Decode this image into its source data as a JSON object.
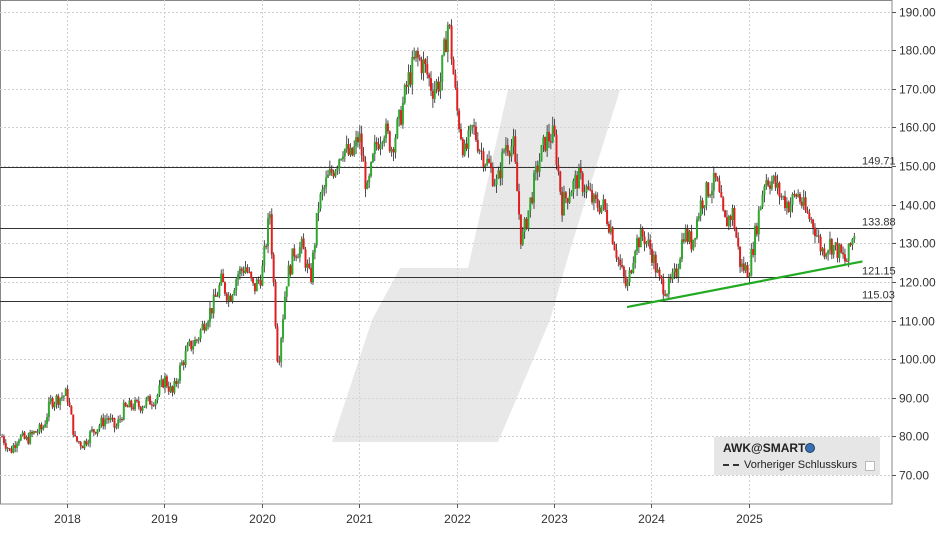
{
  "chart_data": {
    "type": "candlestick",
    "title": "",
    "ylim": [
      62.5,
      193
    ],
    "y_ticks": [
      "190.00",
      "180.00",
      "170.00",
      "160.00",
      "150.00",
      "140.00",
      "130.00",
      "120.00",
      "110.00",
      "100.00",
      "90.00",
      "80.00",
      "70.00"
    ],
    "x_ticks": [
      "2018",
      "2019",
      "2020",
      "2021",
      "2022",
      "2023",
      "2024",
      "2025"
    ],
    "grid": true,
    "up_color": "#2ea82e",
    "down_color": "#e02020",
    "horizontal_levels": [
      {
        "value": 149.71,
        "label": "149.71"
      },
      {
        "value": 133.88,
        "label": "133.88"
      },
      {
        "value": 121.15,
        "label": "121.15"
      },
      {
        "value": 115.03,
        "label": "115.03"
      }
    ],
    "trendline": {
      "start": [
        "2023-10",
        113.5
      ],
      "end": [
        "2026-03",
        125.3
      ],
      "color": "#22aa22"
    },
    "series": [
      {
        "values": [
          [
            "2017-05",
            80
          ],
          [
            "2017-06",
            76
          ],
          [
            "2017-07",
            80
          ],
          [
            "2017-08",
            79
          ],
          [
            "2017-09",
            81
          ],
          [
            "2017-10",
            82
          ],
          [
            "2017-11",
            89
          ],
          [
            "2017-12",
            90
          ],
          [
            "2018-01",
            91
          ],
          [
            "2018-02",
            79
          ],
          [
            "2018-03",
            78
          ],
          [
            "2018-04",
            81
          ],
          [
            "2018-05",
            83
          ],
          [
            "2018-06",
            85
          ],
          [
            "2018-07",
            82
          ],
          [
            "2018-08",
            87
          ],
          [
            "2018-09",
            88
          ],
          [
            "2018-10",
            88
          ],
          [
            "2018-11",
            89
          ],
          [
            "2018-12",
            90
          ],
          [
            "2019-01",
            95
          ],
          [
            "2019-02",
            91
          ],
          [
            "2019-03",
            98
          ],
          [
            "2019-04",
            103
          ],
          [
            "2019-05",
            105
          ],
          [
            "2019-06",
            110
          ],
          [
            "2019-07",
            114
          ],
          [
            "2019-08",
            120
          ],
          [
            "2019-09",
            116
          ],
          [
            "2019-10",
            122
          ],
          [
            "2019-11",
            124
          ],
          [
            "2019-12",
            118
          ],
          [
            "2020-01",
            122
          ],
          [
            "2020-02",
            138
          ],
          [
            "2020-03",
            98
          ],
          [
            "2020-04",
            120
          ],
          [
            "2020-05",
            128
          ],
          [
            "2020-06",
            129
          ],
          [
            "2020-07",
            120
          ],
          [
            "2020-08",
            140
          ],
          [
            "2020-09",
            146
          ],
          [
            "2020-10",
            150
          ],
          [
            "2020-11",
            155
          ],
          [
            "2020-12",
            152
          ],
          [
            "2021-01",
            158
          ],
          [
            "2021-02",
            143
          ],
          [
            "2021-03",
            155
          ],
          [
            "2021-04",
            160
          ],
          [
            "2021-05",
            155
          ],
          [
            "2021-06",
            162
          ],
          [
            "2021-07",
            172
          ],
          [
            "2021-08",
            178
          ],
          [
            "2021-09",
            176
          ],
          [
            "2021-10",
            170
          ],
          [
            "2021-11",
            172
          ],
          [
            "2021-12",
            188
          ],
          [
            "2022-01",
            165
          ],
          [
            "2022-02",
            153
          ],
          [
            "2022-03",
            160
          ],
          [
            "2022-04",
            154
          ],
          [
            "2022-05",
            150
          ],
          [
            "2022-06",
            145
          ],
          [
            "2022-07",
            156
          ],
          [
            "2022-08",
            155
          ],
          [
            "2022-09",
            130
          ],
          [
            "2022-10",
            140
          ],
          [
            "2022-11",
            150
          ],
          [
            "2022-12",
            157
          ],
          [
            "2023-01",
            158
          ],
          [
            "2023-02",
            140
          ],
          [
            "2023-03",
            144
          ],
          [
            "2023-04",
            147
          ],
          [
            "2023-05",
            144
          ],
          [
            "2023-06",
            140
          ],
          [
            "2023-07",
            140
          ],
          [
            "2023-08",
            134
          ],
          [
            "2023-09",
            125
          ],
          [
            "2023-10",
            118
          ],
          [
            "2023-11",
            130
          ],
          [
            "2023-12",
            132
          ],
          [
            "2024-01",
            128
          ],
          [
            "2024-02",
            120
          ],
          [
            "2024-03",
            118
          ],
          [
            "2024-04",
            122
          ],
          [
            "2024-05",
            133
          ],
          [
            "2024-06",
            130
          ],
          [
            "2024-07",
            140
          ],
          [
            "2024-08",
            144
          ],
          [
            "2024-09",
            146
          ],
          [
            "2024-10",
            135
          ],
          [
            "2024-11",
            138
          ],
          [
            "2024-12",
            124
          ],
          [
            "2025-01",
            123
          ],
          [
            "2025-02",
            135
          ],
          [
            "2025-03",
            147
          ],
          [
            "2025-04",
            146
          ],
          [
            "2025-05",
            142
          ],
          [
            "2025-06",
            140
          ],
          [
            "2025-07",
            143
          ],
          [
            "2025-08",
            138
          ],
          [
            "2025-09",
            135
          ],
          [
            "2025-10",
            128
          ],
          [
            "2025-11",
            130
          ],
          [
            "2025-12",
            128
          ],
          [
            "2026-01",
            125
          ],
          [
            "2026-02",
            133
          ]
        ]
      }
    ]
  },
  "legend": {
    "title": "AWK@SMART",
    "row_label": "Vorheriger Schlusskurs"
  }
}
